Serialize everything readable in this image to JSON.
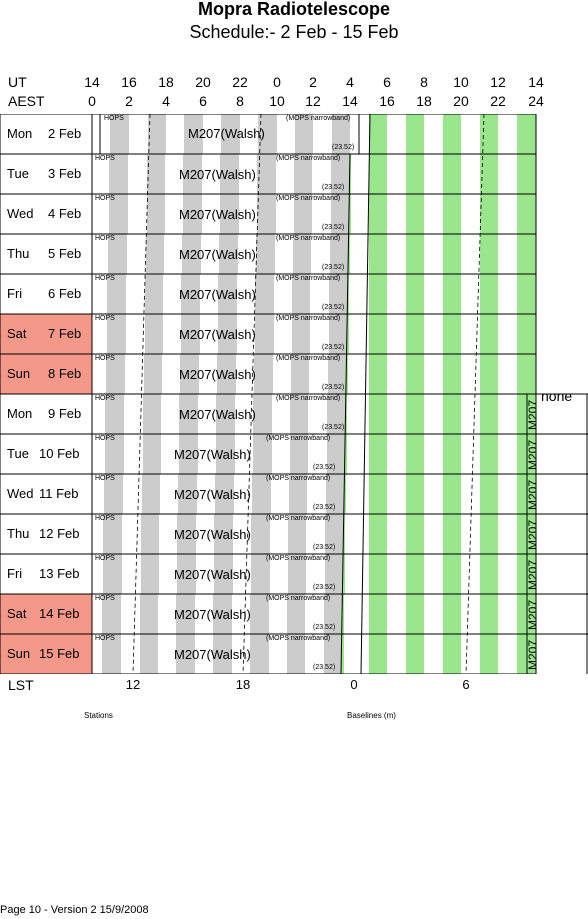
{
  "title": "Mopra Radiotelescope",
  "subtitle": "Schedule:- 2  Feb - 15 Feb",
  "axes": {
    "ut_label": "UT",
    "aest_label": "AEST",
    "lst_label": "LST",
    "ut_ticks": [
      "14",
      "16",
      "18",
      "20",
      "22",
      "0",
      "2",
      "4",
      "6",
      "8",
      "10",
      "12",
      "14"
    ],
    "aest_ticks": [
      "0",
      "2",
      "4",
      "6",
      "8",
      "10",
      "12",
      "14",
      "16",
      "18",
      "20",
      "22",
      "24"
    ],
    "lst_ticks": [
      "12",
      "18",
      "0",
      "6"
    ]
  },
  "days": [
    {
      "dow": "Mon",
      "date": "2 Feb",
      "weekend": false
    },
    {
      "dow": "Tue",
      "date": "3 Feb",
      "weekend": false
    },
    {
      "dow": "Wed",
      "date": "4 Feb",
      "weekend": false
    },
    {
      "dow": "Thu",
      "date": "5 Feb",
      "weekend": false
    },
    {
      "dow": "Fri",
      "date": "6 Feb",
      "weekend": false
    },
    {
      "dow": "Sat",
      "date": "7 Feb",
      "weekend": true
    },
    {
      "dow": "Sun",
      "date": "8 Feb",
      "weekend": true
    },
    {
      "dow": "Mon",
      "date": "9 Feb",
      "weekend": false
    },
    {
      "dow": "Tue",
      "date": "10 Feb",
      "weekend": false
    },
    {
      "dow": "Wed",
      "date": "11 Feb",
      "weekend": false
    },
    {
      "dow": "Thu",
      "date": "12 Feb",
      "weekend": false
    },
    {
      "dow": "Fri",
      "date": "13 Feb",
      "weekend": false
    },
    {
      "dow": "Sat",
      "date": "14 Feb",
      "weekend": true
    },
    {
      "dow": "Sun",
      "date": "15 Feb",
      "weekend": true
    }
  ],
  "blocks": {
    "hops_label": "HOPS",
    "mops_label": "(MOPS narrowband)",
    "value_label": "(23.52)",
    "project_label": "M207(Walsh)",
    "vertical_project_label": "M207",
    "none_label": "none"
  },
  "captions": {
    "stations": "Stations",
    "baselines": "Baselines (m)"
  },
  "footer": "Page 10 - Version 2  15/9/2008",
  "colors": {
    "weekend": "#f4998a",
    "gray_stripe": "#cccccc",
    "green_stripe": "#99e68c"
  }
}
